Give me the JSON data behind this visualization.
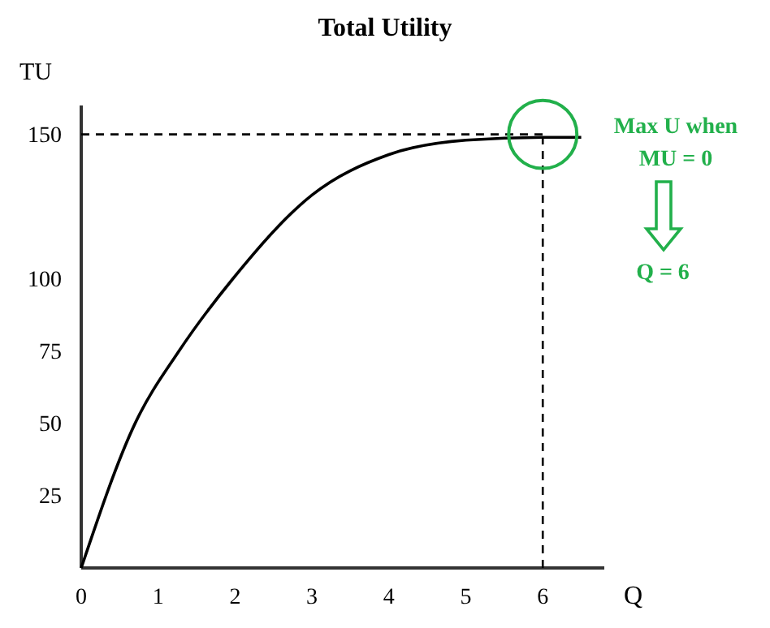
{
  "chart_data": {
    "type": "line",
    "title": "Total Utility",
    "xlabel": "Q",
    "ylabel": "TU",
    "x": [
      0,
      0.7,
      1.27,
      1.97,
      3,
      4,
      5,
      6,
      6.5
    ],
    "series": [
      {
        "color": "#000000",
        "values": [
          0,
          50,
          75,
          100,
          129,
          143,
          148,
          149,
          149
        ]
      },
      {
        "type": "scatter",
        "color": "#22b04b",
        "x": [
          6
        ],
        "values": [
          150
        ],
        "marker": "circle"
      }
    ],
    "xlim": [
      0,
      6.8
    ],
    "ylim": [
      0,
      160
    ],
    "xticks": [
      0,
      1,
      2,
      3,
      4,
      5,
      6
    ],
    "yticks": [
      25,
      50,
      75,
      100,
      150
    ],
    "ref_lines": [
      {
        "axis": "x",
        "value": 6,
        "line_style": "dashed",
        "color": "#000000"
      },
      {
        "axis": "y",
        "value": 150,
        "line_style": "dashed",
        "color": "#000000"
      }
    ],
    "annotations": [
      "Max U when MU = 0",
      "Q = 6"
    ],
    "grid": false,
    "marker": "none",
    "line_style": "solid"
  }
}
